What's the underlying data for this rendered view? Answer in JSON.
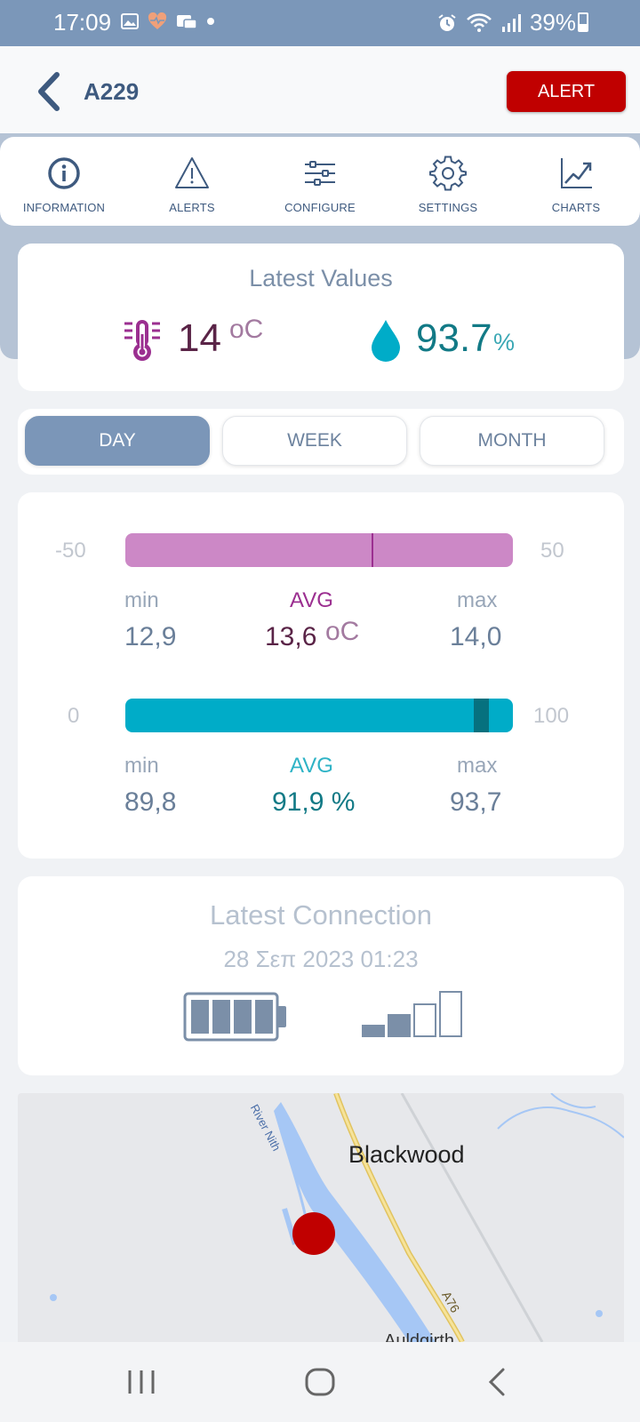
{
  "status_bar": {
    "time": "17:09",
    "battery": "39%"
  },
  "header": {
    "title": "A229",
    "alert_label": "ALERT"
  },
  "tabs": [
    {
      "label": "INFORMATION",
      "icon": "info-icon"
    },
    {
      "label": "ALERTS",
      "icon": "warning-icon"
    },
    {
      "label": "CONFIGURE",
      "icon": "sliders-icon"
    },
    {
      "label": "SETTINGS",
      "icon": "gear-icon"
    },
    {
      "label": "CHARTS",
      "icon": "chart-icon"
    }
  ],
  "latest": {
    "title": "Latest Values",
    "temperature": "14",
    "temperature_unit": "oC",
    "humidity": "93.7",
    "humidity_unit": "%"
  },
  "periods": {
    "day": "DAY",
    "week": "WEEK",
    "month": "MONTH",
    "selected": "DAY"
  },
  "temperature_stats": {
    "range_min": "-50",
    "range_max": "50",
    "min_label": "min",
    "avg_label": "AVG",
    "max_label": "max",
    "min": "12,9",
    "avg": "13,6",
    "avg_unit": "oC",
    "max": "14,0",
    "marker_value": 13.6,
    "bar_color": "#cc88c6",
    "marker_color": "#9b2f90"
  },
  "humidity_stats": {
    "range_min": "0",
    "range_max": "100",
    "min_label": "min",
    "avg_label": "AVG",
    "max_label": "max",
    "min": "89,8",
    "avg": "91,9 %",
    "max": "93,7",
    "marker_min": 89.8,
    "marker_max": 93.7,
    "bar_color": "#00acc8",
    "marker_color": "#06717f"
  },
  "connection": {
    "title": "Latest Connection",
    "date": "28 Σεπ 2023 01:23",
    "battery_bars": 4,
    "signal_bars": 2
  },
  "map": {
    "place1": "Blackwood",
    "place2": "Auldgirth",
    "river": "River Nith",
    "road": "A76"
  },
  "colors": {
    "accent": "#3e5a7f",
    "alert": "#c00000",
    "status_bar": "#7b97b9"
  }
}
